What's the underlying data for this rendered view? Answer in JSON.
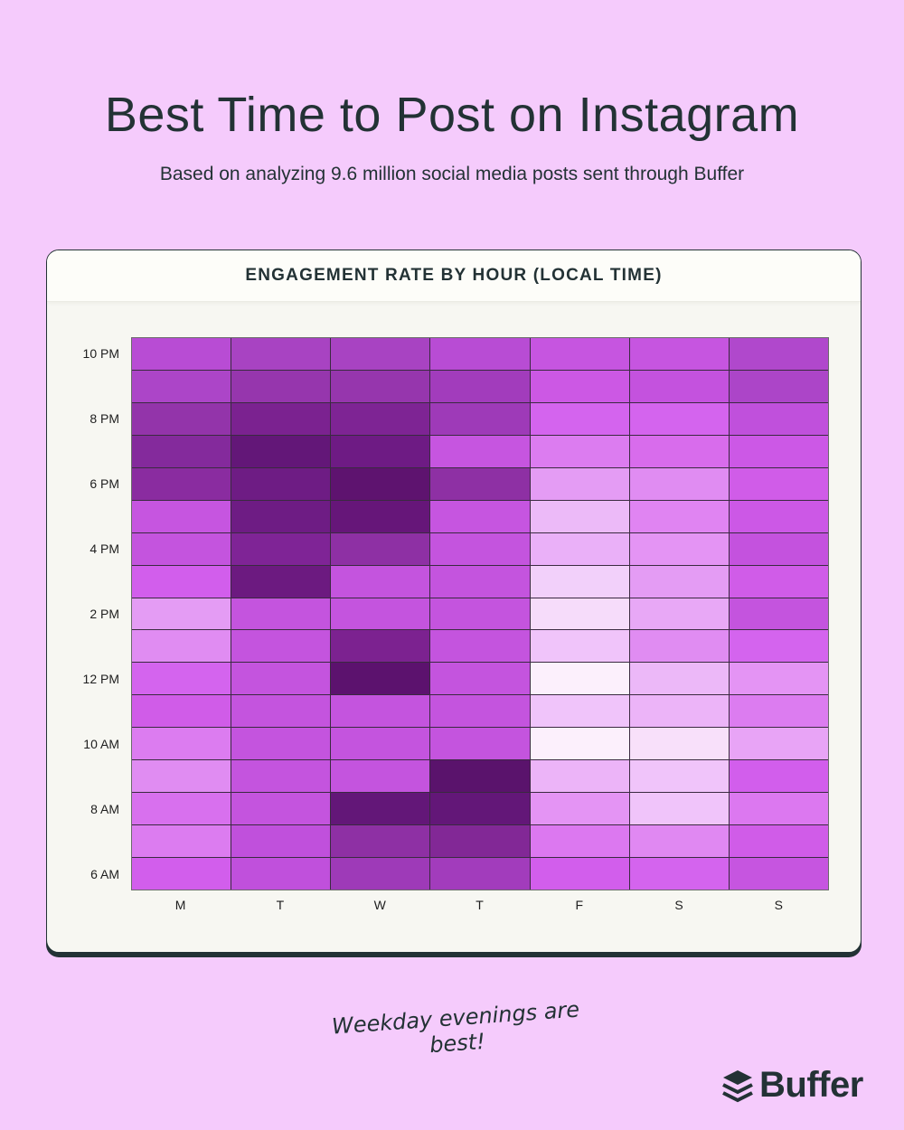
{
  "header": {
    "title": "Best Time to Post on Instagram",
    "subtitle": "Based on analyzing 9.6 million social media posts sent through Buffer"
  },
  "card": {
    "title": "ENGAGEMENT RATE BY HOUR (LOCAL TIME)"
  },
  "footer": {
    "note": "Weekday evenings are best!",
    "brand": "Buffer",
    "brand_icon": "buffer-layers-icon"
  },
  "chart_data": {
    "type": "heatmap",
    "title": "ENGAGEMENT RATE BY HOUR (LOCAL TIME)",
    "xlabel": "",
    "ylabel": "",
    "x_categories": [
      "M",
      "T",
      "W",
      "T",
      "F",
      "S",
      "S"
    ],
    "y_categories": [
      "10 PM",
      "9 PM",
      "8 PM",
      "7 PM",
      "6 PM",
      "5 PM",
      "4 PM",
      "3 PM",
      "2 PM",
      "1 PM",
      "12 PM",
      "11 AM",
      "10 AM",
      "9 AM",
      "8 AM",
      "7 AM",
      "6 AM"
    ],
    "y_tick_labels": [
      "10 PM",
      "",
      "8 PM",
      "",
      "6 PM",
      "",
      "4 PM",
      "",
      "2 PM",
      "",
      "12 PM",
      "",
      "10 AM",
      "",
      "8 AM",
      "",
      "6 AM"
    ],
    "value_scale": "relative engagement intensity 0 (lowest, lightest) to 10 (highest, darkest)",
    "values": [
      [
        6,
        7,
        7,
        6,
        5,
        5,
        6.5
      ],
      [
        6.5,
        8,
        8,
        7.5,
        4.5,
        5,
        6.5
      ],
      [
        8,
        9.5,
        9,
        7.5,
        4,
        4,
        5.5
      ],
      [
        9,
        10,
        9.5,
        5,
        3,
        3.5,
        4.5
      ],
      [
        8.5,
        9.5,
        10,
        8.5,
        2,
        2.5,
        4.2
      ],
      [
        5,
        9.5,
        10,
        5,
        1.2,
        2.8,
        4.5
      ],
      [
        5.2,
        9,
        8.5,
        5.2,
        1.5,
        2.2,
        5.3
      ],
      [
        4.3,
        9.7,
        5.2,
        5.2,
        0.6,
        2,
        4.2
      ],
      [
        2,
        5.2,
        5.2,
        5.2,
        0.4,
        1.7,
        5.2
      ],
      [
        2.5,
        5.2,
        9.2,
        5.2,
        1,
        2.5,
        4
      ],
      [
        4,
        5.2,
        10,
        5.2,
        0.1,
        1.3,
        2.2
      ],
      [
        4.2,
        5.2,
        5.2,
        5.2,
        1,
        1.4,
        3
      ],
      [
        3,
        5.2,
        5.2,
        5.2,
        0.1,
        0.5,
        1.8
      ],
      [
        2.5,
        5.2,
        5.2,
        10,
        1.4,
        1,
        4.3
      ],
      [
        3.5,
        5.2,
        10,
        10,
        2.2,
        1,
        3.2
      ],
      [
        3,
        5.5,
        8.5,
        9,
        3.2,
        2.6,
        4.2
      ],
      [
        4.3,
        5.5,
        7.5,
        7.5,
        4.3,
        4,
        5
      ]
    ],
    "colors": [
      [
        "#b84cd4",
        "#a843c2",
        "#a843c2",
        "#b84cd4",
        "#c655e0",
        "#c655e0",
        "#b048cc"
      ],
      [
        "#ac45c8",
        "#9636ad",
        "#9636ad",
        "#a23cbc",
        "#cc58e4",
        "#c452de",
        "#ac45c8"
      ],
      [
        "#9334aa",
        "#7b2290",
        "#7e2494",
        "#9e3ab8",
        "#d464ee",
        "#d464ee",
        "#c050dc"
      ],
      [
        "#842a9c",
        "#631778",
        "#6e1b84",
        "#c655e0",
        "#dc7cf0",
        "#d86cec",
        "#cc58e6"
      ],
      [
        "#8a2ca0",
        "#6e1c84",
        "#5e136f",
        "#8e30a4",
        "#e49cf4",
        "#e08cf2",
        "#d05ce8"
      ],
      [
        "#c655e0",
        "#6e1c84",
        "#661679",
        "#c655e0",
        "#ecbaf8",
        "#e084f2",
        "#cc58e6"
      ],
      [
        "#c454de",
        "#7f2496",
        "#8e30a4",
        "#c454de",
        "#eab0f8",
        "#e494f4",
        "#c452de"
      ],
      [
        "#d25eec",
        "#6c1a80",
        "#c454de",
        "#c454de",
        "#f2d0fa",
        "#e49cf4",
        "#d05ce8"
      ],
      [
        "#e49cf4",
        "#c454de",
        "#c454de",
        "#c454de",
        "#f6dcfa",
        "#e8a8f6",
        "#c454de"
      ],
      [
        "#e08cf2",
        "#c454de",
        "#7c2290",
        "#c454de",
        "#f0c4fa",
        "#e08cf2",
        "#d464ee"
      ],
      [
        "#d464ee",
        "#c454de",
        "#5c126e",
        "#c454de",
        "#fcf0fc",
        "#ecb8f8",
        "#e494f4"
      ],
      [
        "#d05ce8",
        "#c454de",
        "#c454de",
        "#c454de",
        "#f0c4fa",
        "#ecb4f8",
        "#dc7cf0"
      ],
      [
        "#dc7cf0",
        "#c454de",
        "#c454de",
        "#c454de",
        "#fcf0fc",
        "#f8e0fa",
        "#e8a4f6"
      ],
      [
        "#e08cf2",
        "#c454de",
        "#c454de",
        "#5a136c",
        "#ecb4f8",
        "#f0c4fa",
        "#d25eec"
      ],
      [
        "#d870ee",
        "#c454de",
        "#631778",
        "#631778",
        "#e494f4",
        "#f0c4fa",
        "#dc78f0"
      ],
      [
        "#dc7cf0",
        "#c050dc",
        "#8e30a4",
        "#822896",
        "#dc78f0",
        "#e088f2",
        "#d05ce8"
      ],
      [
        "#d25eec",
        "#c050dc",
        "#9e3ab8",
        "#a23cbc",
        "#d25eec",
        "#d464ee",
        "#c655e0"
      ]
    ],
    "grid": true,
    "legend": "none",
    "annotation": "Weekday evenings are best!"
  },
  "theme": {
    "background": "#f5cbfc",
    "card_background": "#f7f7f2",
    "text": "#233235",
    "darkest_cell": "#5c126e",
    "lightest_cell": "#fcf0fc"
  }
}
